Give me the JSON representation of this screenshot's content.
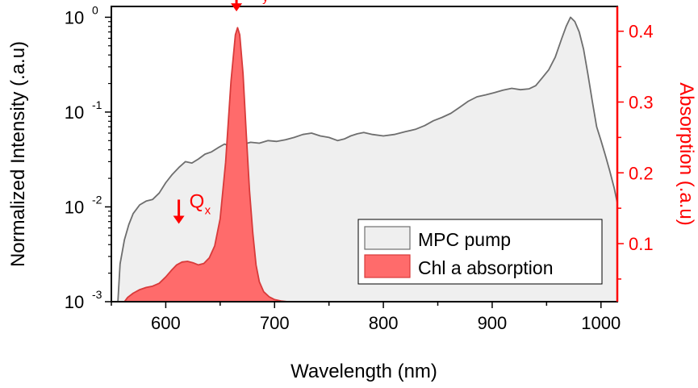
{
  "chart_data": {
    "type": "area",
    "xlabel": "Wavelength (nm)",
    "ylabel_left": "Normalized Intensity (.a.u)",
    "ylabel_right": "Absorption (.a.u)",
    "xlim": [
      550,
      1015
    ],
    "x_ticks": [
      600,
      700,
      800,
      900,
      1000
    ],
    "y_left": {
      "scale": "log",
      "lim": [
        0.001,
        1.3
      ],
      "ticks": [
        {
          "value": 0.001,
          "base": "10",
          "exp": "-3"
        },
        {
          "value": 0.01,
          "base": "10",
          "exp": "-2"
        },
        {
          "value": 0.1,
          "base": "10",
          "exp": "-1"
        },
        {
          "value": 1,
          "base": "10",
          "exp": "0"
        }
      ]
    },
    "y_right": {
      "scale": "linear",
      "lim": [
        0.018,
        0.435
      ],
      "ticks": [
        "0.1",
        "0.2",
        "0.3",
        "0.4"
      ],
      "color": "#ff0000"
    },
    "legend_position": "bottom-right",
    "series": [
      {
        "name": "MPC pump",
        "axis": "left",
        "fill": "#efefef",
        "stroke": "#6e6e6e",
        "points": [
          [
            556,
            0.001
          ],
          [
            558,
            0.0025
          ],
          [
            562,
            0.0045
          ],
          [
            566,
            0.0065
          ],
          [
            570,
            0.0085
          ],
          [
            576,
            0.0105
          ],
          [
            582,
            0.0115
          ],
          [
            588,
            0.012
          ],
          [
            594,
            0.014
          ],
          [
            600,
            0.018
          ],
          [
            606,
            0.022
          ],
          [
            612,
            0.026
          ],
          [
            618,
            0.03
          ],
          [
            624,
            0.029
          ],
          [
            630,
            0.032
          ],
          [
            636,
            0.036
          ],
          [
            642,
            0.038
          ],
          [
            648,
            0.042
          ],
          [
            654,
            0.046
          ],
          [
            660,
            0.043
          ],
          [
            666,
            0.041
          ],
          [
            672,
            0.046
          ],
          [
            678,
            0.048
          ],
          [
            686,
            0.047
          ],
          [
            694,
            0.05
          ],
          [
            702,
            0.049
          ],
          [
            710,
            0.051
          ],
          [
            718,
            0.054
          ],
          [
            726,
            0.058
          ],
          [
            734,
            0.06
          ],
          [
            742,
            0.056
          ],
          [
            750,
            0.054
          ],
          [
            758,
            0.05
          ],
          [
            764,
            0.052
          ],
          [
            770,
            0.056
          ],
          [
            776,
            0.059
          ],
          [
            782,
            0.061
          ],
          [
            790,
            0.058
          ],
          [
            800,
            0.056
          ],
          [
            810,
            0.058
          ],
          [
            820,
            0.062
          ],
          [
            830,
            0.066
          ],
          [
            838,
            0.072
          ],
          [
            846,
            0.081
          ],
          [
            854,
            0.088
          ],
          [
            862,
            0.097
          ],
          [
            870,
            0.112
          ],
          [
            878,
            0.13
          ],
          [
            886,
            0.145
          ],
          [
            894,
            0.152
          ],
          [
            902,
            0.16
          ],
          [
            910,
            0.17
          ],
          [
            918,
            0.178
          ],
          [
            926,
            0.172
          ],
          [
            934,
            0.176
          ],
          [
            940,
            0.19
          ],
          [
            946,
            0.23
          ],
          [
            952,
            0.28
          ],
          [
            958,
            0.38
          ],
          [
            964,
            0.6
          ],
          [
            968,
            0.8
          ],
          [
            972,
            1.0
          ],
          [
            976,
            0.9
          ],
          [
            980,
            0.7
          ],
          [
            984,
            0.46
          ],
          [
            988,
            0.25
          ],
          [
            992,
            0.13
          ],
          [
            996,
            0.07
          ],
          [
            1000,
            0.05
          ],
          [
            1004,
            0.035
          ],
          [
            1008,
            0.024
          ],
          [
            1012,
            0.016
          ],
          [
            1015,
            0.011
          ]
        ]
      },
      {
        "name": "Chl a absorption",
        "axis": "right",
        "fill": "#ff6b6b",
        "stroke": "#d83a3a",
        "points": [
          [
            562,
            0.018
          ],
          [
            565,
            0.024
          ],
          [
            570,
            0.03
          ],
          [
            576,
            0.035
          ],
          [
            582,
            0.038
          ],
          [
            588,
            0.04
          ],
          [
            594,
            0.044
          ],
          [
            600,
            0.053
          ],
          [
            605,
            0.062
          ],
          [
            610,
            0.07
          ],
          [
            615,
            0.074
          ],
          [
            620,
            0.075
          ],
          [
            625,
            0.073
          ],
          [
            630,
            0.07
          ],
          [
            635,
            0.072
          ],
          [
            640,
            0.08
          ],
          [
            645,
            0.097
          ],
          [
            650,
            0.135
          ],
          [
            655,
            0.215
          ],
          [
            660,
            0.33
          ],
          [
            664,
            0.395
          ],
          [
            666,
            0.405
          ],
          [
            668,
            0.395
          ],
          [
            671,
            0.34
          ],
          [
            674,
            0.255
          ],
          [
            677,
            0.175
          ],
          [
            680,
            0.115
          ],
          [
            683,
            0.07
          ],
          [
            686,
            0.046
          ],
          [
            690,
            0.032
          ],
          [
            695,
            0.025
          ],
          [
            700,
            0.021
          ],
          [
            706,
            0.019
          ],
          [
            712,
            0.018
          ]
        ]
      }
    ],
    "annotations": [
      {
        "base": "Q",
        "sub": "y",
        "x": 665,
        "y_right": 0.428
      },
      {
        "base": "Q",
        "sub": "x",
        "x": 612,
        "y_right": 0.128
      }
    ]
  }
}
